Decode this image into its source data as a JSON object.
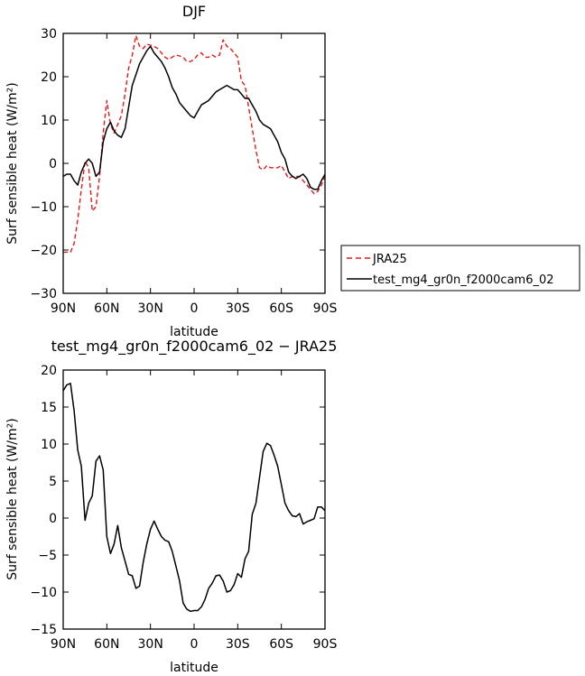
{
  "chart_data": [
    {
      "type": "line",
      "title": "DJF",
      "xlabel": "latitude",
      "ylabel": "Surf sensible heat (W/m²)",
      "xlim": [
        90,
        -90
      ],
      "ylim": [
        -30,
        30
      ],
      "x_ticks": [
        90,
        60,
        30,
        0,
        -30,
        -60,
        -90
      ],
      "x_tick_labels": [
        "90N",
        "60N",
        "30N",
        "0",
        "30S",
        "60S",
        "90S"
      ],
      "y_ticks": [
        -30,
        -20,
        -10,
        0,
        10,
        20,
        30
      ],
      "y_tick_labels": [
        "−30",
        "−20",
        "−10",
        "0",
        "10",
        "20",
        "30"
      ],
      "legend_position": "right",
      "series": [
        {
          "name": "JRA25",
          "color": "#e31a1c",
          "dash": "dashed",
          "x": [
            90,
            87.5,
            85,
            82.5,
            80,
            77.5,
            75,
            72.5,
            70,
            67.5,
            65,
            62.5,
            60,
            57.5,
            55,
            52.5,
            50,
            47.5,
            45,
            42.5,
            40,
            37.5,
            35,
            32.5,
            30,
            27.5,
            25,
            22.5,
            20,
            17.5,
            15,
            12.5,
            10,
            7.5,
            5,
            2.5,
            0,
            -2.5,
            -5,
            -7.5,
            -10,
            -12.5,
            -15,
            -17.5,
            -20,
            -22.5,
            -25,
            -27.5,
            -30,
            -32.5,
            -35,
            -37.5,
            -40,
            -42.5,
            -45,
            -47.5,
            -50,
            -52.5,
            -55,
            -57.5,
            -60,
            -62.5,
            -65,
            -67.5,
            -70,
            -72.5,
            -75,
            -77.5,
            -80,
            -82.5,
            -85,
            -87.5,
            -90
          ],
          "values": [
            -20.5,
            -20.5,
            -20.5,
            -18.5,
            -13,
            -6,
            0.5,
            -1,
            -11,
            -10,
            -3,
            7,
            14.5,
            9,
            7,
            9,
            11,
            16,
            22,
            25,
            29.5,
            27,
            26.5,
            27.5,
            27.3,
            27,
            26.5,
            25.5,
            24.5,
            24,
            24.5,
            25,
            24.8,
            24.5,
            23.5,
            23.5,
            24,
            25,
            25.5,
            24.5,
            24.5,
            25,
            24.5,
            25,
            28.5,
            27,
            26.5,
            25.5,
            24.5,
            19,
            18,
            13,
            8,
            3,
            -1,
            -1.5,
            -0.5,
            -1,
            -1,
            -1,
            -0.5,
            -2,
            -3.5,
            -3,
            -3,
            -3,
            -4,
            -5,
            -6,
            -7,
            -6.5,
            -5,
            -3
          ]
        },
        {
          "name": "test_mg4_gr0n_f2000cam6_02",
          "color": "#000000",
          "dash": "solid",
          "x": [
            90,
            87.5,
            85,
            82.5,
            80,
            77.5,
            75,
            72.5,
            70,
            67.5,
            65,
            62.5,
            60,
            57.5,
            55,
            52.5,
            50,
            47.5,
            45,
            42.5,
            40,
            37.5,
            35,
            32.5,
            30,
            27.5,
            25,
            22.5,
            20,
            17.5,
            15,
            12.5,
            10,
            7.5,
            5,
            2.5,
            0,
            -2.5,
            -5,
            -7.5,
            -10,
            -12.5,
            -15,
            -17.5,
            -20,
            -22.5,
            -25,
            -27.5,
            -30,
            -32.5,
            -35,
            -37.5,
            -40,
            -42.5,
            -45,
            -47.5,
            -50,
            -52.5,
            -55,
            -57.5,
            -60,
            -62.5,
            -65,
            -67.5,
            -70,
            -72.5,
            -75,
            -77.5,
            -80,
            -82.5,
            -85,
            -87.5,
            -90
          ],
          "values": [
            -3,
            -2.5,
            -2.5,
            -4,
            -5,
            -2,
            0,
            1,
            0,
            -3,
            -2,
            5,
            8,
            9.5,
            7.5,
            6.5,
            6,
            8,
            13,
            18,
            20.5,
            23,
            24.5,
            26,
            27,
            25.5,
            24.5,
            23.5,
            22,
            20,
            17.5,
            16,
            14,
            13,
            12,
            11,
            10.5,
            12,
            13.5,
            14,
            14.5,
            15.5,
            16.5,
            17,
            17.5,
            18,
            17.5,
            17,
            17,
            16,
            15,
            15,
            13.5,
            12,
            10,
            9,
            8.5,
            8,
            6.5,
            5,
            2.5,
            1,
            -2,
            -3,
            -3.5,
            -3,
            -2.5,
            -3.5,
            -5.5,
            -6,
            -6,
            -4,
            -2.5
          ]
        }
      ]
    },
    {
      "type": "line",
      "title": "test_mg4_gr0n_f2000cam6_02 − JRA25",
      "xlabel": "latitude",
      "ylabel": "Surf sensible heat (W/m²)",
      "xlim": [
        90,
        -90
      ],
      "ylim": [
        -15,
        20
      ],
      "x_ticks": [
        90,
        60,
        30,
        0,
        -30,
        -60,
        -90
      ],
      "x_tick_labels": [
        "90N",
        "60N",
        "30N",
        "0",
        "30S",
        "60S",
        "90S"
      ],
      "y_ticks": [
        -15,
        -10,
        -5,
        0,
        5,
        10,
        15,
        20
      ],
      "y_tick_labels": [
        "−15",
        "−10",
        "−5",
        "0",
        "5",
        "10",
        "15",
        "20"
      ],
      "series": [
        {
          "color": "#000000",
          "x": [
            90,
            87.5,
            85,
            82.5,
            80,
            77.5,
            75,
            72.5,
            70,
            67.5,
            65,
            62.5,
            60,
            57.5,
            55,
            52.5,
            50,
            47.5,
            45,
            42.5,
            40,
            37.5,
            35,
            32.5,
            30,
            27.5,
            25,
            22.5,
            20,
            17.5,
            15,
            12.5,
            10,
            7.5,
            5,
            2.5,
            0,
            -2.5,
            -5,
            -7.5,
            -10,
            -12.5,
            -15,
            -17.5,
            -20,
            -22.5,
            -25,
            -27.5,
            -30,
            -32.5,
            -35,
            -37.5,
            -40,
            -42.5,
            -45,
            -47.5,
            -50,
            -52.5,
            -55,
            -57.5,
            -60,
            -62.5,
            -65,
            -67.5,
            -70,
            -72.5,
            -75,
            -77.5,
            -80,
            -82.5,
            -85,
            -87.5,
            -90
          ],
          "values": [
            17.2,
            18,
            18.2,
            14.5,
            9.2,
            7,
            -0.3,
            2,
            3,
            7.7,
            8.4,
            6.5,
            -2.5,
            -4.8,
            -3.5,
            -1,
            -4,
            -5.8,
            -7.6,
            -7.8,
            -9.5,
            -9.2,
            -6,
            -3.5,
            -1.5,
            -0.4,
            -1.5,
            -2.5,
            -3,
            -3.2,
            -4.5,
            -6.5,
            -8.5,
            -11.5,
            -12.3,
            -12.6,
            -12.5,
            -12.5,
            -12,
            -11,
            -9.5,
            -8.8,
            -7.8,
            -7.7,
            -8.5,
            -10,
            -9.8,
            -9,
            -7.5,
            -8,
            -5.5,
            -4.5,
            0.5,
            2,
            5.5,
            9,
            10.1,
            9.8,
            8.5,
            7,
            4.5,
            2,
            1,
            0.3,
            0.2,
            0.6,
            -0.8,
            -0.5,
            -0.3,
            -0.1,
            1.5,
            1.5,
            1
          ]
        }
      ]
    }
  ]
}
